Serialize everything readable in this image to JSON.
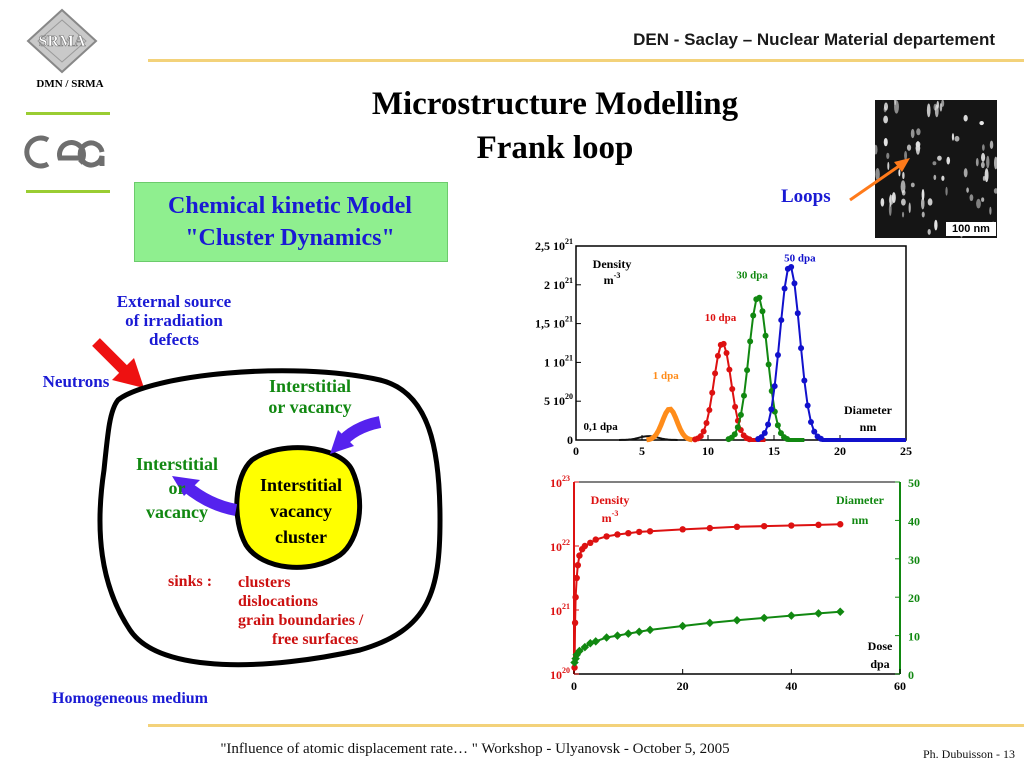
{
  "header": {
    "org": "DEN - Saclay – Nuclear Material departement",
    "dept": "DMN / SRMA"
  },
  "title": {
    "line1": "Microstructure Modelling",
    "line2": "Frank loop"
  },
  "model_box": {
    "line1": "Chemical kinetic Model",
    "line2": "\"Cluster Dynamics\""
  },
  "diagram": {
    "external_source": [
      "External source",
      "of irradiation",
      "defects"
    ],
    "neutrons": "Neutrons",
    "interstitial_in": [
      "Interstitial",
      "or vacancy"
    ],
    "interstitial_out": [
      "Interstitial",
      "or",
      "vacancy"
    ],
    "cluster": [
      "Interstitial",
      "vacancy",
      "cluster"
    ],
    "sinks_label": "sinks :",
    "sinks": [
      "clusters",
      "dislocations",
      "grain boundaries /",
      "free surfaces"
    ],
    "medium": "Homogeneous medium"
  },
  "image": {
    "loops_label": "Loops",
    "scale_label": "100 nm"
  },
  "footer": {
    "text": "\"Influence of atomic displacement rate… \"   Workshop   -   Ulyanovsk   -   October 5, 2005",
    "page": "Ph. Dubuisson  -  13"
  },
  "chart_data": [
    {
      "type": "line",
      "xlabel": "Diameter nm",
      "ylabel": "Density m-3",
      "xlim": [
        0,
        25
      ],
      "ylim": [
        0,
        2.5e+21
      ],
      "x_ticks": [
        "0",
        "5",
        "10",
        "15",
        "20",
        "25"
      ],
      "y_ticks": [
        "0",
        "5 10^20",
        "1 10^21",
        "1,5 10^21",
        "2 10^21",
        "2,5 10^21"
      ],
      "series": [
        {
          "name": "0,1 dpa",
          "color": "#111111",
          "center": 5.5,
          "peak": 5e+19,
          "sigma": 0.7
        },
        {
          "name": "1 dpa",
          "color": "#ff8c1a",
          "center": 7.1,
          "peak": 4e+20,
          "sigma": 0.55
        },
        {
          "name": "10 dpa",
          "color": "#dd1111",
          "center": 11.1,
          "peak": 1.25e+21,
          "sigma": 0.65
        },
        {
          "name": "30 dpa",
          "color": "#118811",
          "center": 13.8,
          "peak": 1.85e+21,
          "sigma": 0.7
        },
        {
          "name": "50 dpa",
          "color": "#1111cc",
          "center": 16.2,
          "peak": 2.25e+21,
          "sigma": 0.75
        }
      ]
    },
    {
      "type": "line",
      "xlabel": "Dose dpa",
      "ylabel_left": "Density m-3",
      "ylabel_right": "Diameter nm",
      "xlim": [
        0,
        60
      ],
      "ylim_left_log10": [
        20,
        23
      ],
      "ylim_right": [
        0,
        50
      ],
      "x_ticks": [
        "0",
        "20",
        "40",
        "60"
      ],
      "y_ticks_left": [
        "10^20",
        "10^21",
        "10^22",
        "10^23"
      ],
      "y_ticks_right": [
        "0",
        "10",
        "20",
        "30",
        "40",
        "50"
      ],
      "series": [
        {
          "name": "Density",
          "color": "#dd1111",
          "x": [
            0.1,
            0.2,
            0.3,
            0.5,
            0.7,
            1,
            1.5,
            2,
            3,
            4,
            6,
            8,
            10,
            12,
            14,
            20,
            25,
            30,
            35,
            40,
            45,
            49
          ],
          "log10_y": [
            20.1,
            20.8,
            21.2,
            21.5,
            21.7,
            21.85,
            21.95,
            22.0,
            22.05,
            22.1,
            22.15,
            22.18,
            22.2,
            22.22,
            22.23,
            22.26,
            22.28,
            22.3,
            22.31,
            22.32,
            22.33,
            22.34
          ]
        },
        {
          "name": "Diameter",
          "color": "#118811",
          "x": [
            0.1,
            0.3,
            0.5,
            1,
            2,
            3,
            4,
            6,
            8,
            10,
            12,
            14,
            20,
            25,
            30,
            35,
            40,
            45,
            49
          ],
          "y": [
            3,
            4,
            5,
            6,
            7,
            8,
            8.5,
            9.5,
            10,
            10.5,
            11,
            11.5,
            12.5,
            13.3,
            14,
            14.6,
            15.2,
            15.8,
            16.2
          ]
        }
      ]
    }
  ]
}
